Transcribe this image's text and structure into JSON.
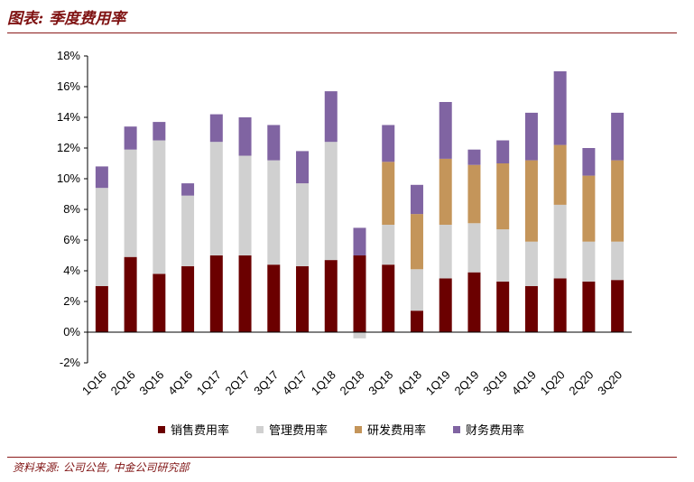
{
  "title": "图表: 季度费用率",
  "source": "资料来源: 公司公告, 中金公司研究部",
  "chart_data": {
    "type": "bar",
    "stacked": true,
    "categories": [
      "1Q16",
      "2Q16",
      "3Q16",
      "4Q16",
      "1Q17",
      "2Q17",
      "3Q17",
      "4Q17",
      "1Q18",
      "2Q18",
      "3Q18",
      "4Q18",
      "1Q19",
      "2Q19",
      "3Q19",
      "4Q19",
      "1Q20",
      "2Q20",
      "3Q20"
    ],
    "ylim": [
      -2,
      18
    ],
    "yticks": [
      "-2%",
      "0%",
      "2%",
      "4%",
      "6%",
      "8%",
      "10%",
      "12%",
      "14%",
      "16%",
      "18%"
    ],
    "series": [
      {
        "name": "销售费用率",
        "color": "#6b0000",
        "values": [
          3.0,
          4.9,
          3.8,
          4.3,
          5.0,
          5.0,
          4.4,
          4.3,
          4.7,
          5.0,
          4.4,
          1.4,
          3.5,
          3.9,
          3.3,
          3.0,
          3.5,
          3.3,
          3.4
        ]
      },
      {
        "name": "管理费用率",
        "color": "#d0d0d0",
        "values": [
          6.4,
          7.0,
          8.7,
          4.6,
          7.4,
          6.5,
          6.8,
          5.4,
          7.7,
          -0.4,
          2.6,
          2.7,
          3.5,
          3.2,
          3.4,
          2.9,
          4.8,
          2.6,
          2.5
        ]
      },
      {
        "name": "研发费用率",
        "color": "#c4955a",
        "values": [
          0,
          0,
          0,
          0,
          0,
          0,
          0,
          0,
          0,
          0,
          4.1,
          3.6,
          4.3,
          3.8,
          4.3,
          5.3,
          3.9,
          4.3,
          5.3
        ]
      },
      {
        "name": "财务费用率",
        "color": "#8064a2",
        "values": [
          1.4,
          1.5,
          1.2,
          0.8,
          1.8,
          2.5,
          2.3,
          2.1,
          3.3,
          1.8,
          2.4,
          1.9,
          3.7,
          1.0,
          1.5,
          3.1,
          4.8,
          1.8,
          3.1
        ]
      }
    ]
  }
}
